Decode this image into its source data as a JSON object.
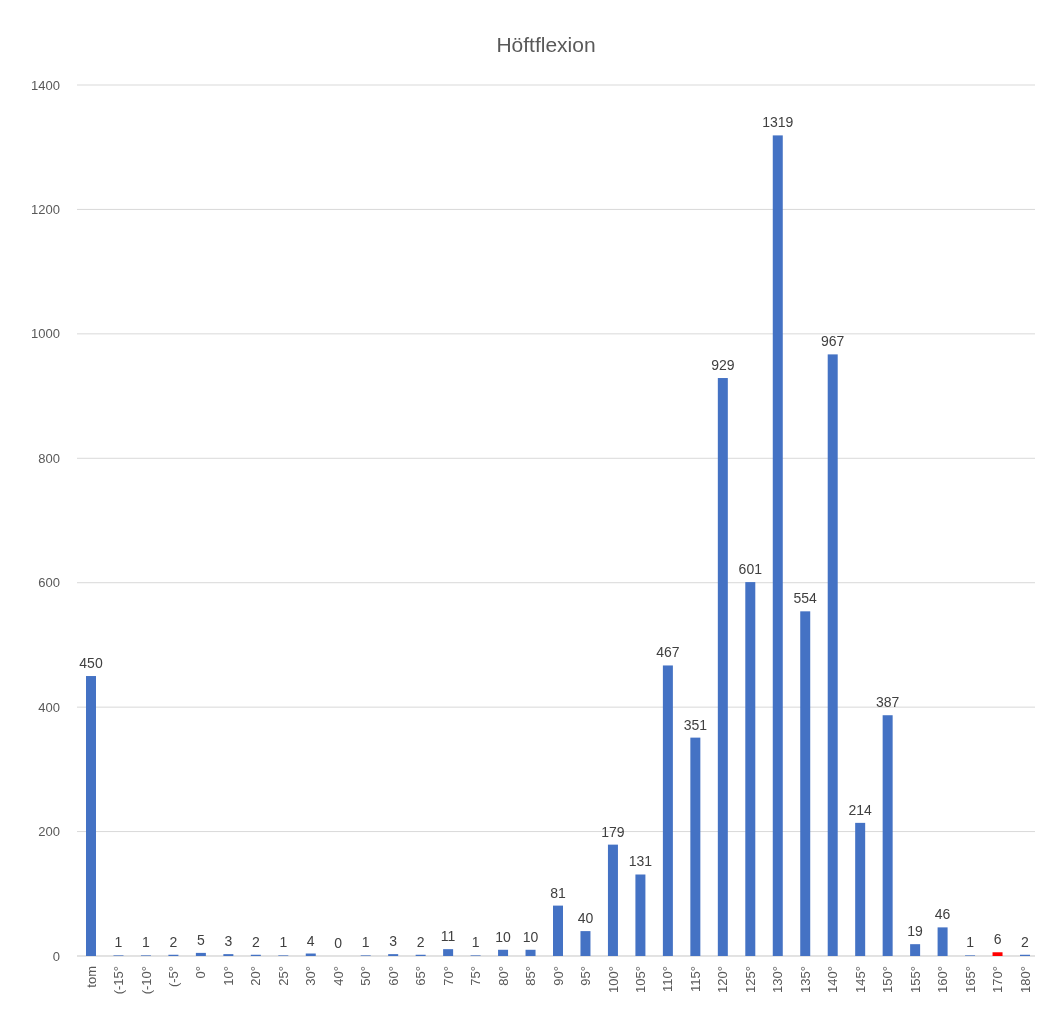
{
  "chart_data": {
    "type": "bar",
    "title": "Höftflexion",
    "categories": [
      "tom",
      "(-15°",
      "(-10°",
      "(-5°",
      "0°",
      "10°",
      "20°",
      "25°",
      "30°",
      "40°",
      "50°",
      "60°",
      "65°",
      "70°",
      "75°",
      "80°",
      "85°",
      "90°",
      "95°",
      "100°",
      "105°",
      "110°",
      "115°",
      "120°",
      "125°",
      "130°",
      "135°",
      "140°",
      "145°",
      "150°",
      "155°",
      "160°",
      "165°",
      "170°",
      "180°"
    ],
    "values": [
      450,
      1,
      1,
      2,
      5,
      3,
      2,
      1,
      4,
      0,
      1,
      3,
      2,
      11,
      1,
      10,
      10,
      81,
      40,
      179,
      131,
      467,
      351,
      929,
      601,
      1319,
      554,
      967,
      214,
      387,
      19,
      46,
      1,
      6,
      2
    ],
    "colors": [
      "#4472c4",
      "#4472c4",
      "#4472c4",
      "#4472c4",
      "#4472c4",
      "#4472c4",
      "#4472c4",
      "#4472c4",
      "#4472c4",
      "#4472c4",
      "#4472c4",
      "#4472c4",
      "#4472c4",
      "#4472c4",
      "#4472c4",
      "#4472c4",
      "#4472c4",
      "#4472c4",
      "#4472c4",
      "#4472c4",
      "#4472c4",
      "#4472c4",
      "#4472c4",
      "#4472c4",
      "#4472c4",
      "#4472c4",
      "#4472c4",
      "#4472c4",
      "#4472c4",
      "#4472c4",
      "#4472c4",
      "#4472c4",
      "#4472c4",
      "#ff0000",
      "#4472c4"
    ],
    "ylim": [
      0,
      1400
    ],
    "yticks": [
      0,
      200,
      400,
      600,
      800,
      1000,
      1200,
      1400
    ],
    "grid": "y",
    "data_labels": true
  }
}
